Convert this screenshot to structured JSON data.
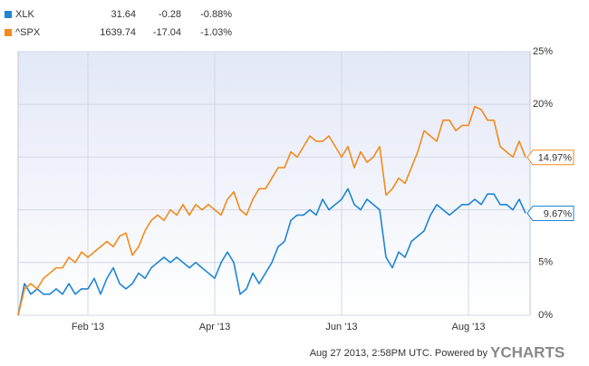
{
  "chart_data": {
    "type": "line",
    "categories": [
      null,
      null,
      null,
      null,
      null,
      null,
      null,
      null,
      null,
      null,
      null,
      "Feb '13",
      null,
      null,
      null,
      null,
      null,
      null,
      null,
      null,
      null,
      null,
      null,
      null,
      null,
      null,
      null,
      null,
      null,
      null,
      null,
      "Apr '13",
      null,
      null,
      null,
      null,
      null,
      null,
      null,
      null,
      null,
      null,
      null,
      null,
      null,
      null,
      null,
      null,
      null,
      null,
      null,
      "Jun '13",
      null,
      null,
      null,
      null,
      null,
      null,
      null,
      null,
      null,
      null,
      null,
      null,
      null,
      null,
      null,
      null,
      null,
      null,
      null,
      "Aug '13",
      null,
      null,
      null,
      null,
      null,
      null,
      null,
      null,
      null
    ],
    "series": [
      {
        "name": "XLK",
        "color": "#1f86d4",
        "price": 31.64,
        "change": -0.28,
        "change_percent": "-0.88%",
        "end_label": "9.67%",
        "values": [
          0,
          3,
          2,
          2.5,
          2,
          2,
          2.5,
          2,
          3,
          2,
          2.5,
          2.5,
          3.5,
          2,
          3.5,
          4.5,
          3,
          2.5,
          3,
          4,
          3.5,
          4.5,
          5,
          5.5,
          5,
          5.5,
          5,
          4.5,
          5,
          4.5,
          4,
          3.5,
          5,
          6,
          5,
          2,
          2.5,
          4,
          3,
          4,
          5,
          6.5,
          7,
          9,
          9.5,
          9.5,
          10,
          9.5,
          11,
          10,
          10.5,
          11,
          12,
          10.5,
          10,
          11,
          10.5,
          10,
          5.5,
          4.5,
          6,
          5.5,
          7,
          7.5,
          8,
          9.5,
          10.5,
          10,
          9.5,
          10,
          10.5,
          10.5,
          11,
          10.5,
          11.5,
          11.5,
          10.5,
          10.5,
          10,
          11,
          9.67
        ]
      },
      {
        "name": "^SPX",
        "color": "#f28a1d",
        "price": 1639.74,
        "change": -17.04,
        "change_percent": "-1.03%",
        "end_label": "14.97%",
        "values": [
          0,
          2.5,
          3,
          2.5,
          3.5,
          4,
          4.5,
          4.5,
          5.5,
          5,
          6,
          5.5,
          6,
          6.5,
          7,
          6.5,
          7.5,
          7.8,
          5.7,
          6.5,
          8,
          9,
          9.5,
          9,
          10,
          9.5,
          10.5,
          9.5,
          10.5,
          10,
          10.5,
          10,
          9.5,
          11,
          11.7,
          10,
          9.5,
          11,
          12,
          12,
          13,
          14,
          14,
          15.5,
          15,
          16,
          17,
          16.5,
          16.5,
          17,
          16,
          15,
          16,
          14,
          15.5,
          14.5,
          15,
          16,
          11.4,
          12,
          13,
          12.5,
          14,
          15.5,
          17.5,
          17,
          16.5,
          18.5,
          18.5,
          17.5,
          18,
          18,
          19.8,
          19.5,
          18.5,
          18.5,
          16,
          15.5,
          15,
          16.5,
          14.97
        ]
      }
    ],
    "ylim": [
      0,
      25
    ],
    "yticks": [
      {
        "value": 0,
        "label": "0%"
      },
      {
        "value": 5,
        "label": "5%"
      },
      {
        "value": 10,
        "label": "10%"
      },
      {
        "value": 15,
        "label": "15%"
      },
      {
        "value": 20,
        "label": "20%"
      },
      {
        "value": 25,
        "label": "25%"
      }
    ],
    "grid": true,
    "down_color": "#d0161b",
    "footer": "Aug 27 2013, 2:58PM UTC.  Powered by",
    "brand": "YCHARTS"
  }
}
